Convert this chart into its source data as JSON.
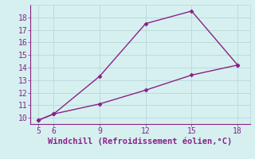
{
  "line1_x": [
    5,
    6,
    9,
    12,
    15,
    18
  ],
  "line1_y": [
    9.8,
    10.3,
    13.3,
    17.5,
    18.5,
    14.2
  ],
  "line2_x": [
    5,
    6,
    9,
    12,
    15,
    18
  ],
  "line2_y": [
    9.8,
    10.3,
    11.1,
    12.2,
    13.4,
    14.2
  ],
  "line_color": "#882288",
  "marker": "D",
  "markersize": 2.5,
  "xlabel": "Windchill (Refroidissement éolien,°C)",
  "xlim": [
    4.5,
    18.8
  ],
  "ylim": [
    9.5,
    19.0
  ],
  "xticks": [
    5,
    6,
    9,
    12,
    15,
    18
  ],
  "yticks": [
    10,
    11,
    12,
    13,
    14,
    15,
    16,
    17,
    18
  ],
  "bg_color": "#d6f0f0",
  "grid_color": "#b8d8d8",
  "xlabel_fontsize": 7.5,
  "tick_fontsize": 7.0,
  "linewidth": 1.0
}
